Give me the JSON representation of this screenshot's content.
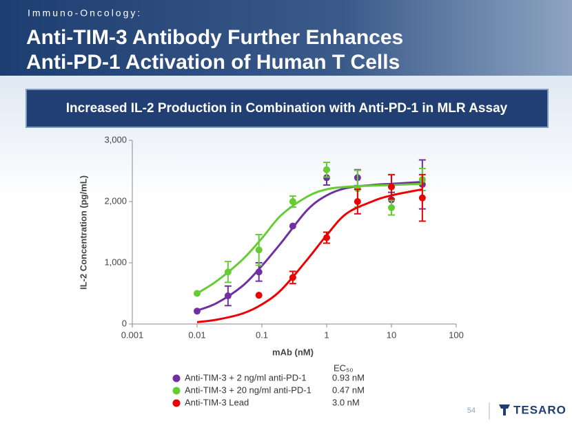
{
  "header": {
    "kicker": "Immuno-Oncology:",
    "title": [
      "Anti-TIM-3 Antibody Further Enhances",
      "Anti-PD-1 Activation of Human T Cells"
    ]
  },
  "banner": "Increased IL-2 Production in Combination with Anti-PD-1 in MLR Assay",
  "chart_data": {
    "type": "scatter",
    "x_label": "mAb (nM)",
    "y_label": "IL-2 Concentration (pg/mL)",
    "xscale": "log",
    "xlim": [
      0.001,
      100
    ],
    "xticks": [
      0.001,
      0.01,
      0.1,
      1,
      10,
      100
    ],
    "ylim": [
      0,
      3000
    ],
    "yticks": [
      0,
      {
        "value": 1000,
        "label": "1,000"
      },
      {
        "value": 2000,
        "label": "2,000"
      },
      {
        "value": 3000,
        "label": "3,000"
      }
    ],
    "legend_header": "EC₅₀",
    "x": [
      0.01,
      0.03,
      0.09,
      0.3,
      1,
      3,
      10,
      30
    ],
    "fit_x": [
      0.01,
      0.02,
      0.05,
      0.1,
      0.2,
      0.5,
      1,
      2,
      5,
      10,
      30
    ],
    "series": [
      {
        "name": "Anti-TIM-3 + 2 ng/ml anti-PD-1",
        "ec50": "0.93 nM",
        "color": "#7030a0",
        "values": [
          210,
          460,
          850,
          1600,
          2390,
          2390,
          2030,
          2280
        ],
        "errors": [
          null,
          160,
          150,
          null,
          120,
          130,
          120,
          400
        ],
        "fit_values": [
          220,
          340,
          620,
          950,
          1330,
          1860,
          2100,
          2220,
          2270,
          2290,
          2320
        ]
      },
      {
        "name": "Anti-TIM-3 + 20 ng/ml anti-PD-1",
        "ec50": "0.47 nM",
        "color": "#66cc33",
        "values": [
          500,
          850,
          1210,
          2000,
          2520,
          2210,
          1900,
          2360
        ],
        "errors": [
          null,
          170,
          250,
          90,
          120,
          300,
          120,
          180
        ],
        "fit_values": [
          500,
          700,
          1050,
          1400,
          1780,
          2080,
          2200,
          2240,
          2260,
          2270,
          2290
        ]
      },
      {
        "name": "Anti-TIM-3 Lead",
        "ec50": "3.0 nM",
        "color": "#ee0000",
        "values": [
          null,
          null,
          470,
          760,
          1410,
          2000,
          2240,
          2060
        ],
        "errors": [
          null,
          null,
          null,
          100,
          90,
          200,
          200,
          380
        ],
        "fit_values": [
          30,
          70,
          170,
          320,
          560,
          1050,
          1450,
          1800,
          2000,
          2100,
          2200
        ]
      }
    ]
  },
  "footer": {
    "page": "54",
    "logo": "TESARO"
  }
}
